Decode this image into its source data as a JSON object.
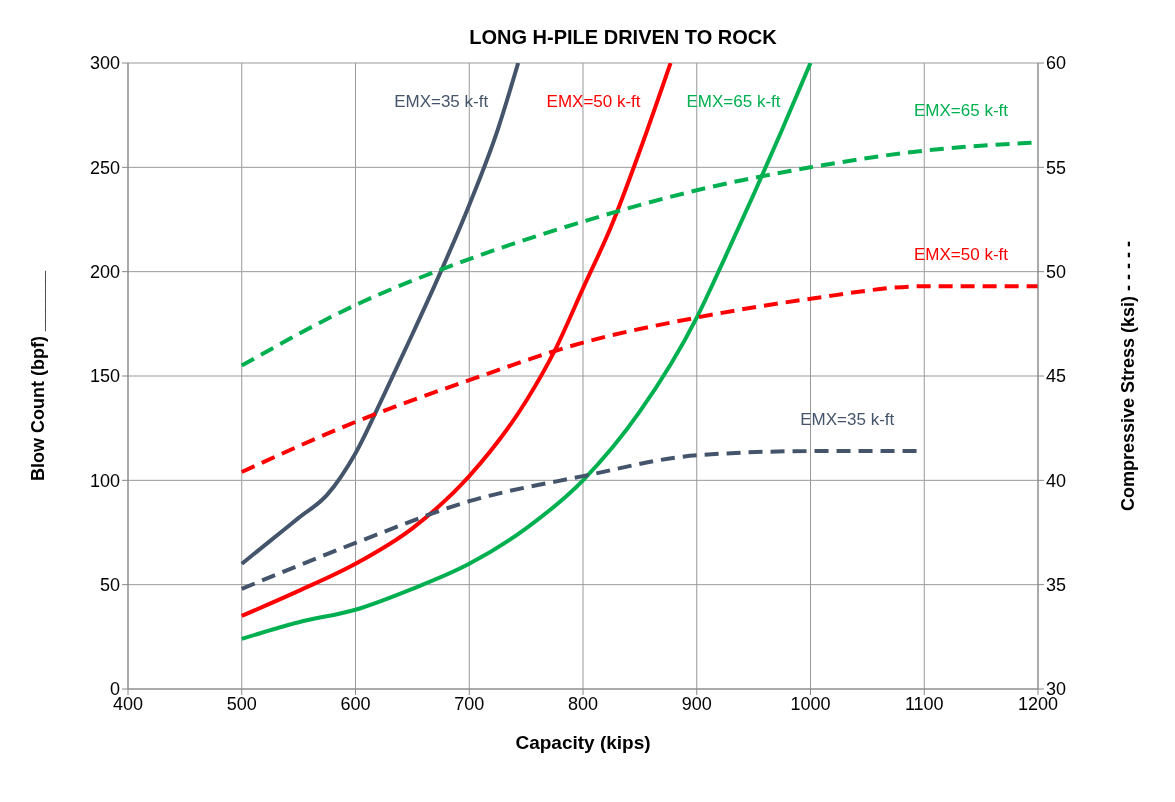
{
  "chart_data": {
    "type": "line",
    "title": "LONG H-PILE DRIVEN TO ROCK",
    "xlabel": "Capacity (kips)",
    "ylabel": "Blow Count (bpf) ______",
    "y2label": "Compressive Stress (ksi) - - - - -",
    "xlim": [
      400,
      1200
    ],
    "xticks": [
      400,
      500,
      600,
      700,
      800,
      900,
      1000,
      1100,
      1200
    ],
    "ylim": [
      0,
      300
    ],
    "yticks": [
      0,
      50,
      100,
      150,
      200,
      250,
      300
    ],
    "y2lim": [
      30,
      60
    ],
    "y2ticks": [
      30,
      35,
      40,
      45,
      50,
      55,
      60
    ],
    "grid": true,
    "marker": "none",
    "series": [
      {
        "name": "EMX=35 k-ft",
        "color": "#44546a",
        "line_style": "solid",
        "x": [
          500,
          525,
          550,
          575,
          600,
          625,
          650,
          675,
          700,
          725,
          743
        ],
        "values": [
          60,
          71,
          82,
          93,
          113,
          141,
          170,
          200,
          232,
          268,
          300
        ]
      },
      {
        "name": "EMX=50 k-ft",
        "color": "#ff0000",
        "line_style": "solid",
        "x": [
          500,
          550,
          600,
          650,
          700,
          750,
          775,
          800,
          825,
          850,
          877
        ],
        "values": [
          35,
          47,
          60,
          77,
          102,
          138,
          162,
          192,
          222,
          258,
          300
        ]
      },
      {
        "name": "EMX=65 k-ft",
        "color": "#00b050",
        "line_style": "solid",
        "x": [
          500,
          550,
          600,
          650,
          700,
          750,
          800,
          850,
          900,
          925,
          950,
          975,
          1000
        ],
        "values": [
          24,
          32,
          38,
          48,
          60,
          77,
          100,
          133,
          178,
          207,
          237,
          268,
          300
        ]
      },
      {
        "name": "EMX=35 k-ft",
        "color": "#44546a",
        "line_style": "dashed",
        "axis": "y2",
        "x": [
          500,
          600,
          700,
          800,
          900,
          1000,
          1100
        ],
        "values": [
          34.8,
          37.0,
          39.0,
          40.2,
          41.2,
          41.4,
          41.4
        ]
      },
      {
        "name": "EMX=50 k-ft",
        "color": "#ff0000",
        "line_style": "dashed",
        "axis": "y2",
        "x": [
          500,
          600,
          700,
          800,
          900,
          1000,
          1100,
          1200
        ],
        "values": [
          40.4,
          42.8,
          44.8,
          46.6,
          47.8,
          48.7,
          49.3,
          49.3
        ]
      },
      {
        "name": "EMX=65 k-ft",
        "color": "#00b050",
        "line_style": "dashed",
        "axis": "y2",
        "x": [
          500,
          600,
          700,
          800,
          900,
          1000,
          1100,
          1200
        ],
        "values": [
          45.5,
          48.4,
          50.6,
          52.4,
          53.9,
          55.0,
          55.8,
          56.2
        ]
      }
    ]
  }
}
